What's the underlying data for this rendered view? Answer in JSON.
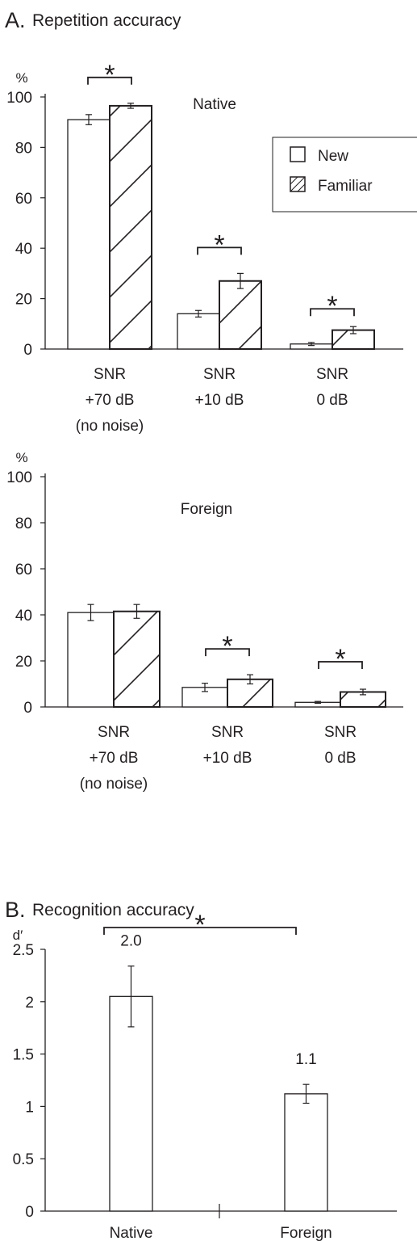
{
  "panel_a": {
    "letter": "A.",
    "title": "Repetition accuracy"
  },
  "panel_b": {
    "letter": "B.",
    "title": "Recognition accuracy"
  },
  "chart_data": [
    {
      "type": "bar",
      "title": "Native",
      "ylabel": "%",
      "ylim": [
        0,
        100
      ],
      "yticks": [
        0,
        20,
        40,
        60,
        80,
        100
      ],
      "categories": [
        [
          "SNR",
          "+70 dB",
          "(no noise)"
        ],
        [
          "SNR",
          "+10 dB"
        ],
        [
          "SNR",
          "0 dB"
        ]
      ],
      "series": [
        {
          "name": "New",
          "values": [
            91,
            14,
            2
          ],
          "errors": [
            2,
            1.3,
            0.6
          ],
          "pattern": "none"
        },
        {
          "name": "Familiar",
          "values": [
            96.5,
            27,
            7.5
          ],
          "errors": [
            1,
            3,
            1.4
          ],
          "pattern": "hatch"
        }
      ],
      "legend": {
        "position": "top-right",
        "entries": [
          "New",
          "Familiar"
        ]
      },
      "significance": [
        {
          "category": 0,
          "label": "*"
        },
        {
          "category": 1,
          "label": "*"
        },
        {
          "category": 2,
          "label": "*"
        }
      ]
    },
    {
      "type": "bar",
      "title": "Foreign",
      "ylabel": "%",
      "ylim": [
        0,
        100
      ],
      "yticks": [
        0,
        20,
        40,
        60,
        80,
        100
      ],
      "categories": [
        [
          "SNR",
          "+70 dB",
          "(no noise)"
        ],
        [
          "SNR",
          "+10 dB"
        ],
        [
          "SNR",
          "0 dB"
        ]
      ],
      "series": [
        {
          "name": "New",
          "values": [
            41,
            8.5,
            2
          ],
          "errors": [
            3.5,
            1.8,
            0.4
          ],
          "pattern": "none"
        },
        {
          "name": "Familiar",
          "values": [
            41.5,
            12,
            6.5
          ],
          "errors": [
            3,
            2,
            1.2
          ],
          "pattern": "hatch"
        }
      ],
      "significance": [
        {
          "category": 1,
          "label": "*"
        },
        {
          "category": 2,
          "label": "*"
        }
      ]
    },
    {
      "type": "bar",
      "ylabel": "d′",
      "ylim": [
        0,
        2.5
      ],
      "yticks": [
        "0",
        "0.5",
        "1",
        "1.5",
        "2",
        "2.5"
      ],
      "categories": [
        "Native",
        "Foreign"
      ],
      "values": [
        2.05,
        1.12
      ],
      "errors": [
        0.29,
        0.09
      ],
      "data_labels": [
        "2.0",
        "1.1"
      ],
      "significance": [
        {
          "from": 0,
          "to": 1,
          "label": "*"
        }
      ]
    }
  ]
}
